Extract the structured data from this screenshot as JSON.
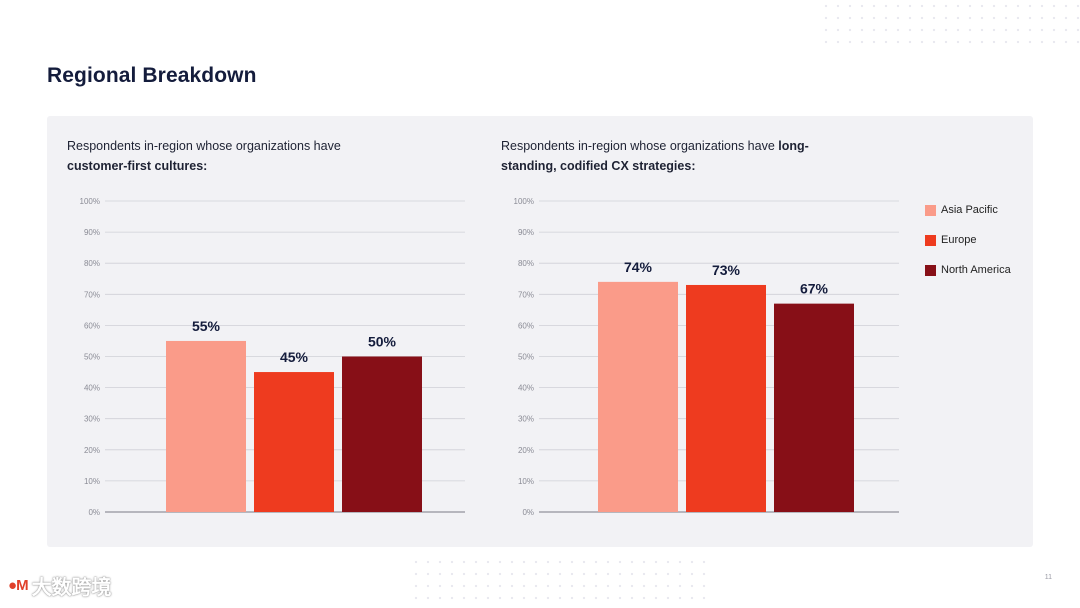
{
  "slide": {
    "title": "Regional Breakdown",
    "page_number": "11",
    "logo_text": "M",
    "watermark_text": "大数跨境"
  },
  "left_chart": {
    "subtitle_plain": "Respondents in-region whose organizations have ",
    "subtitle_bold": "customer-first cultures:",
    "subtitle_tail": ""
  },
  "right_chart": {
    "subtitle_plain": "Respondents in-region whose organizations have ",
    "subtitle_bold": "long-standing, codified CX strategies:",
    "subtitle_tail": ""
  },
  "legend": [
    {
      "label": "Asia Pacific",
      "color": "#fa9b89"
    },
    {
      "label": "Europe",
      "color": "#ee3b1f"
    },
    {
      "label": "North America",
      "color": "#870f17"
    }
  ],
  "chart_data": [
    {
      "type": "bar",
      "title": "Respondents in-region whose organizations have customer-first cultures:",
      "categories": [
        "Asia Pacific",
        "Europe",
        "North America"
      ],
      "values": [
        55,
        45,
        50
      ],
      "labels": [
        "55%",
        "45%",
        "50%"
      ],
      "colors": [
        "#fa9b89",
        "#ee3b1f",
        "#870f17"
      ],
      "ylim": [
        0,
        100
      ],
      "yticks": [
        "0%",
        "10%",
        "20%",
        "30%",
        "40%",
        "50%",
        "60%",
        "70%",
        "80%",
        "90%",
        "100%"
      ],
      "grid": true
    },
    {
      "type": "bar",
      "title": "Respondents in-region whose organizations have long-standing, codified CX strategies:",
      "categories": [
        "Asia Pacific",
        "Europe",
        "North America"
      ],
      "values": [
        74,
        73,
        67
      ],
      "labels": [
        "74%",
        "73%",
        "67%"
      ],
      "colors": [
        "#fa9b89",
        "#ee3b1f",
        "#870f17"
      ],
      "ylim": [
        0,
        100
      ],
      "yticks": [
        "0%",
        "10%",
        "20%",
        "30%",
        "40%",
        "50%",
        "60%",
        "70%",
        "80%",
        "90%",
        "100%"
      ],
      "grid": true,
      "legend_position": "right"
    }
  ]
}
